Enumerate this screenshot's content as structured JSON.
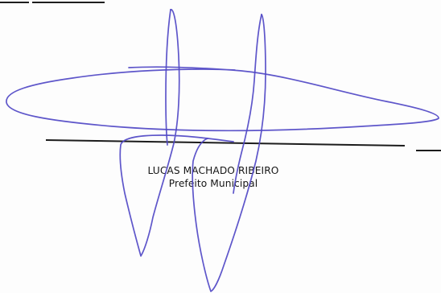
{
  "document": {
    "signer_name": "LUCAS MACHADO RIBEIRO",
    "signer_title": "Prefeito Municipal",
    "ink_color": "#5048c6",
    "line_color": "#1c1c1c"
  }
}
